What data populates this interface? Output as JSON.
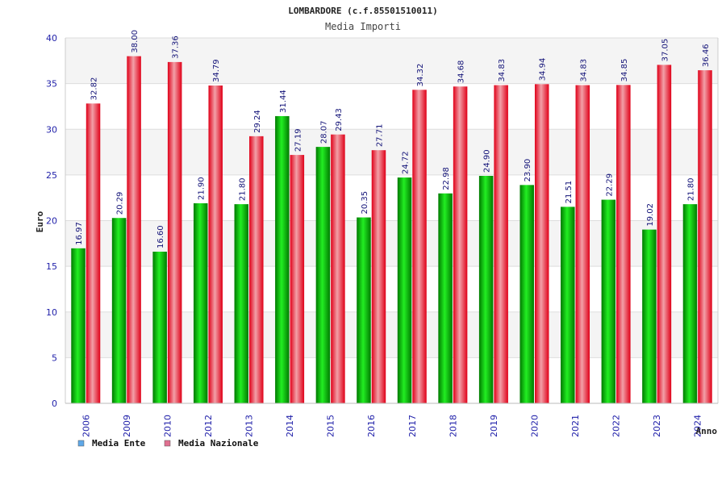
{
  "chart_data": {
    "type": "bar",
    "title": "LOMBARDORE (c.f.85501510011)",
    "subtitle": "Media Importi",
    "xlabel": "Anno",
    "ylabel": "Euro",
    "ylim": [
      0,
      40
    ],
    "yticks": [
      0,
      5,
      10,
      15,
      20,
      25,
      30,
      35,
      40
    ],
    "grid": true,
    "legend_position": "bottom-left",
    "categories": [
      "2006",
      "2009",
      "2010",
      "2012",
      "2013",
      "2014",
      "2015",
      "2016",
      "2017",
      "2018",
      "2019",
      "2020",
      "2021",
      "2022",
      "2023",
      "2024"
    ],
    "series": [
      {
        "name": "Media Ente",
        "color": "#00aa00",
        "legend_color": "#5fa8e8",
        "values": [
          16.97,
          20.29,
          16.6,
          21.9,
          21.8,
          31.44,
          28.07,
          20.35,
          24.72,
          22.98,
          24.9,
          23.9,
          21.51,
          22.29,
          19.02,
          21.8
        ],
        "labels": [
          "16.97",
          "20.29",
          "16.60",
          "21.90",
          "21.80",
          "31.44",
          "28.07",
          "20.35",
          "24.72",
          "22.98",
          "24.90",
          "23.90",
          "21.51",
          "22.29",
          "19.02",
          "21.80"
        ]
      },
      {
        "name": "Media Nazionale",
        "color": "#ee1122",
        "legend_color": "#e07090",
        "values": [
          32.82,
          38.0,
          37.36,
          34.79,
          29.24,
          27.19,
          29.43,
          27.71,
          34.32,
          34.68,
          34.83,
          34.94,
          34.83,
          34.85,
          37.05,
          36.46
        ],
        "labels": [
          "32.82",
          "38.00",
          "37.36",
          "34.79",
          "29.24",
          "27.19",
          "29.43",
          "27.71",
          "34.32",
          "34.68",
          "34.83",
          "34.94",
          "34.83",
          "34.85",
          "37.05",
          "36.46"
        ]
      }
    ]
  }
}
